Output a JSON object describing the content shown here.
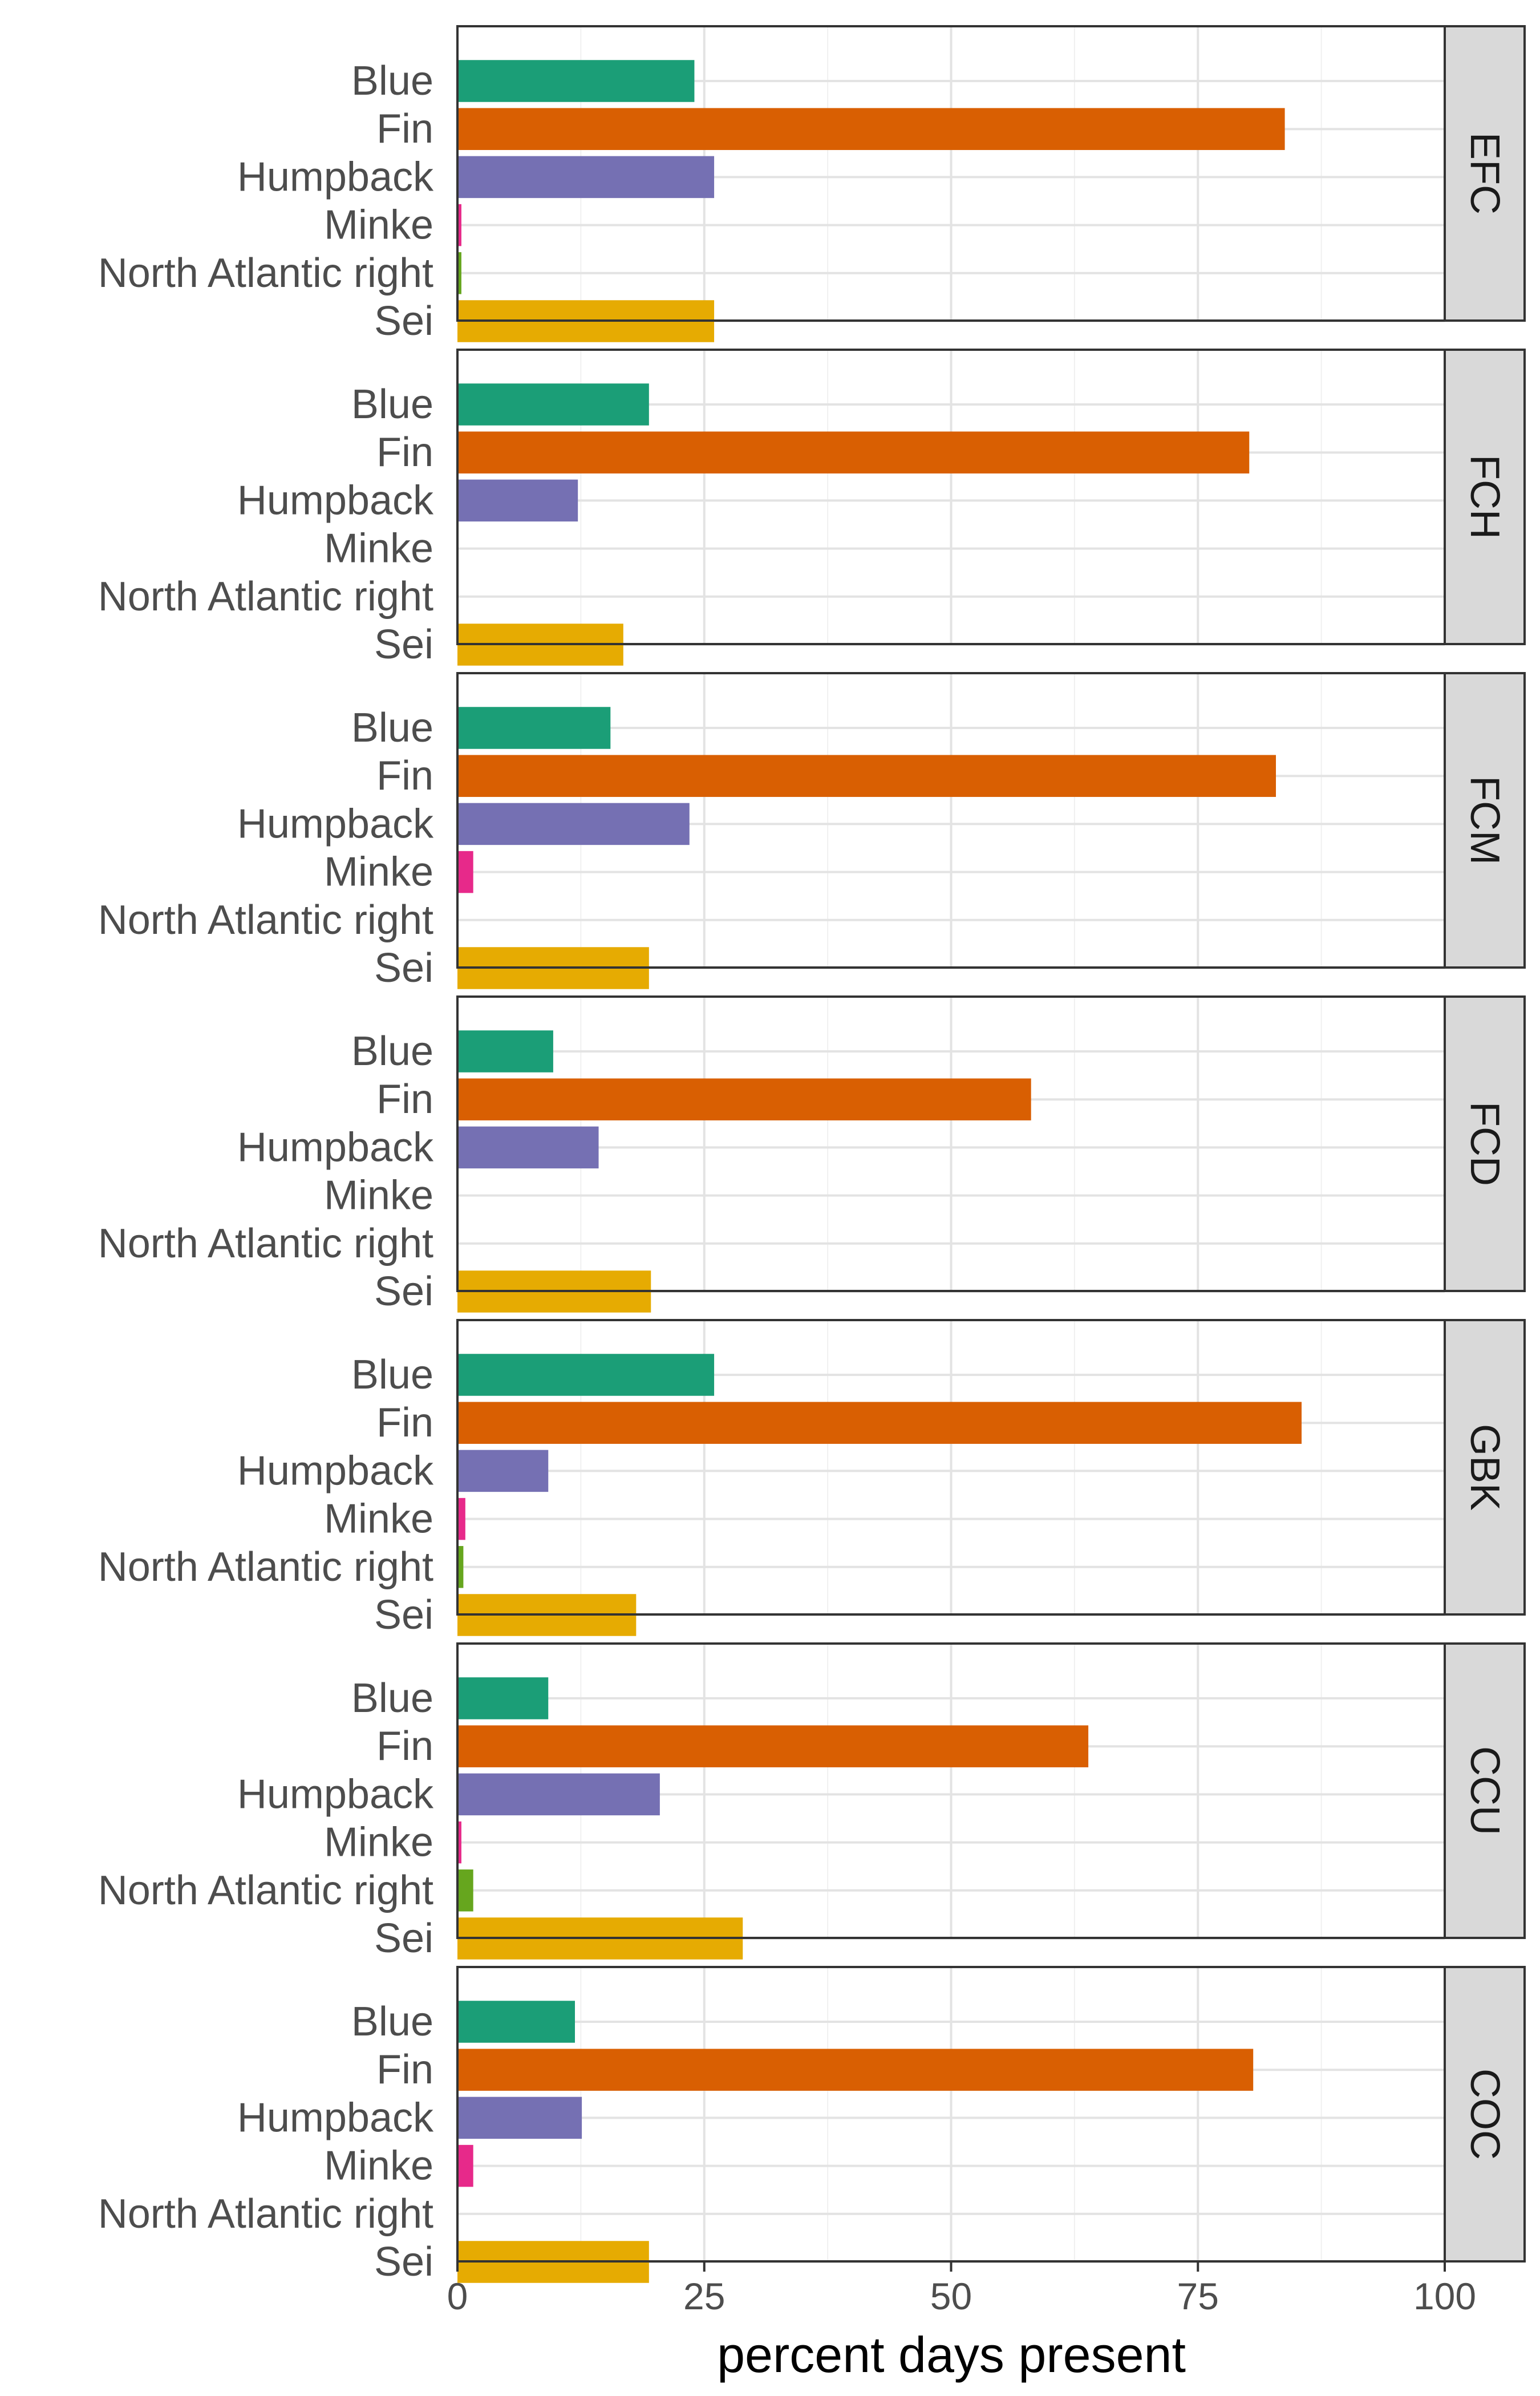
{
  "chart_data": {
    "type": "bar",
    "orientation": "horizontal",
    "xlabel": "percent days present",
    "ylabel": "",
    "xlim": [
      0,
      100
    ],
    "x_ticks": [
      "0",
      "25",
      "50",
      "75",
      "100"
    ],
    "grid": true,
    "categories": [
      "Blue",
      "Fin",
      "Humpback",
      "Minke",
      "North Atlantic right",
      "Sei"
    ],
    "colors": {
      "Blue": "#1b9e77",
      "Fin": "#d95f02",
      "Humpback": "#7570b3",
      "Minke": "#e7298a",
      "North Atlantic right": "#66a61e",
      "Sei": "#e6ab02"
    },
    "facets": [
      {
        "name": "EFC",
        "values": [
          24.0,
          83.8,
          26.0,
          0.4,
          0.4,
          26.0
        ]
      },
      {
        "name": "FCH",
        "values": [
          19.4,
          80.2,
          12.2,
          0,
          0,
          16.8
        ]
      },
      {
        "name": "FCM",
        "values": [
          15.5,
          82.9,
          23.5,
          1.6,
          0,
          19.4
        ]
      },
      {
        "name": "FCD",
        "values": [
          9.7,
          58.1,
          14.3,
          0,
          0,
          19.6
        ]
      },
      {
        "name": "GBK",
        "values": [
          26.0,
          85.5,
          9.2,
          0.8,
          0.6,
          18.1
        ]
      },
      {
        "name": "CCU",
        "values": [
          9.2,
          63.9,
          20.5,
          0.4,
          1.6,
          28.9
        ]
      },
      {
        "name": "COC",
        "values": [
          11.9,
          80.6,
          12.6,
          1.6,
          0,
          19.4
        ]
      }
    ]
  }
}
